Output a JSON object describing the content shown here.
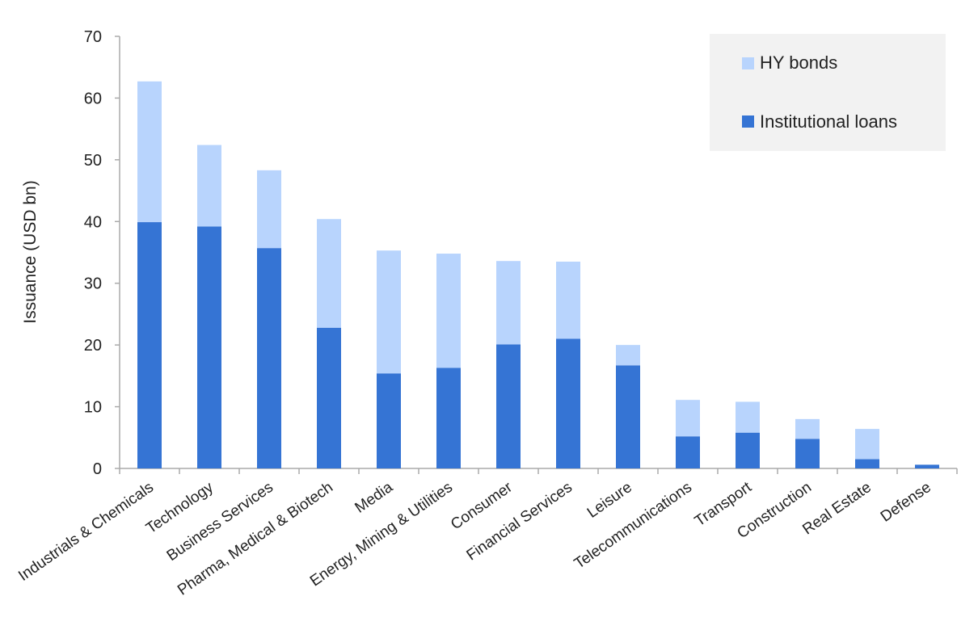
{
  "chart_data": {
    "type": "bar",
    "stacked": true,
    "title": "",
    "xlabel": "",
    "ylabel": "Issuance (USD bn)",
    "ylim": [
      0,
      70
    ],
    "yticks": [
      "0",
      "10",
      "20",
      "30",
      "40",
      "50",
      "60",
      "70"
    ],
    "grid": false,
    "legend_position": "top-right",
    "categories": [
      "Industrials & Chemicals",
      "Technology",
      "Business Services",
      "Pharma, Medical & Biotech",
      "Media",
      "Energy, Mining & Utilities",
      "Consumer",
      "Financial Services",
      "Leisure",
      "Telecommunications",
      "Transport",
      "Construction",
      "Real Estate",
      "Defense"
    ],
    "series": [
      {
        "name": "Institutional loans",
        "color": "#3574d4",
        "values": [
          39.9,
          39.2,
          35.7,
          22.8,
          15.4,
          16.3,
          20.1,
          21.0,
          16.7,
          5.2,
          5.8,
          4.8,
          1.5,
          0.6
        ]
      },
      {
        "name": "HY bonds",
        "color": "#b8d4fd",
        "values": [
          22.8,
          13.2,
          12.6,
          17.6,
          19.9,
          18.5,
          13.5,
          12.5,
          3.3,
          5.9,
          5.0,
          3.2,
          4.9,
          0.0
        ]
      }
    ],
    "legend": [
      "HY bonds",
      "Institutional loans"
    ]
  },
  "colors": {
    "axis": "#aaaaaa",
    "legend_background": "#f2f2f2"
  }
}
